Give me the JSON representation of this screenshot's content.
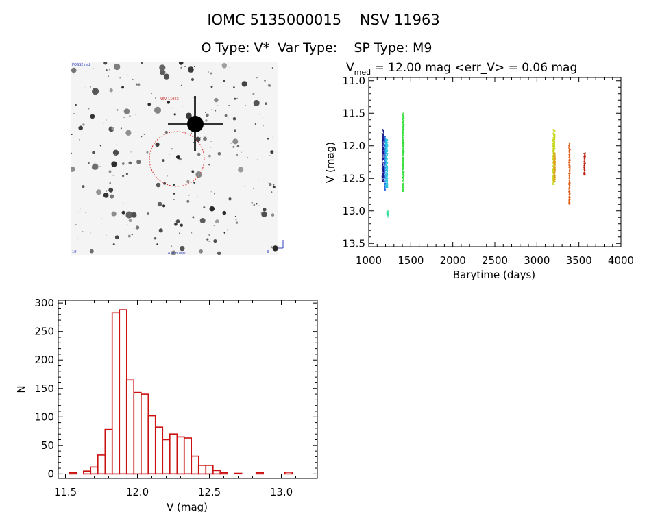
{
  "header": {
    "title": "IOMC 5135000015    NSV 11963",
    "subtitle": "O Type: V*  Var Type:    SP Type: M9"
  },
  "sky_image": {
    "top_left_label": "POSS2 red",
    "red_label": "NSV 11963",
    "bottom_left_label": "10'",
    "bottom_center_label": "4.1E3 MJD",
    "bottom_right_label": "E",
    "top_right_label": "N"
  },
  "chart_data": [
    {
      "type": "scatter",
      "title_prefix": "V",
      "title_sub": "med",
      "title_rest": " = 12.00 mag <err_V> = 0.06 mag",
      "xlabel": "Barytime (days)",
      "ylabel": "V (mag)",
      "xlim": [
        1000,
        4000
      ],
      "ylim": [
        13.55,
        10.95
      ],
      "xticks": [
        "1000",
        "1500",
        "2000",
        "2500",
        "3000",
        "3500",
        "4000"
      ],
      "yticks": [
        "11.0",
        "11.5",
        "12.0",
        "12.5",
        "13.0",
        "13.5"
      ],
      "series": [
        {
          "color": "#1c1c8c",
          "x": [
            1160,
            1180
          ],
          "y_range": [
            11.75,
            12.55
          ]
        },
        {
          "color": "#2a6fe0",
          "x": [
            1185,
            1200
          ],
          "y_range": [
            11.85,
            12.7
          ]
        },
        {
          "color": "#2ec5e0",
          "x": [
            1200,
            1225
          ],
          "y_range": [
            11.9,
            12.65
          ]
        },
        {
          "color": "#35e0a0",
          "x": [
            1215,
            1235
          ],
          "y_range": [
            13.0,
            13.1
          ]
        },
        {
          "color": "#3be040",
          "x": [
            1400,
            1420
          ],
          "y_range": [
            11.5,
            12.7
          ]
        },
        {
          "color": "#c8d820",
          "x": [
            3190,
            3215
          ],
          "y_range": [
            11.75,
            12.6
          ]
        },
        {
          "color": "#e0a020",
          "x": [
            3200,
            3220
          ],
          "y_range": [
            12.1,
            12.55
          ]
        },
        {
          "color": "#e06018",
          "x": [
            3380,
            3395
          ],
          "y_range": [
            11.95,
            12.9
          ]
        },
        {
          "color": "#c02010",
          "x": [
            3560,
            3575
          ],
          "y_range": [
            12.1,
            12.45
          ]
        }
      ]
    },
    {
      "type": "bar",
      "xlabel": "V (mag)",
      "ylabel": "N",
      "xlim": [
        11.45,
        13.25
      ],
      "ylim": [
        -8,
        305
      ],
      "xticks": [
        "11.5",
        "12.0",
        "12.5",
        "13.0"
      ],
      "yticks": [
        "0",
        "50",
        "100",
        "150",
        "200",
        "250",
        "300"
      ],
      "bin_width": 0.05,
      "bins": [
        [
          11.55,
          2
        ],
        [
          11.65,
          5
        ],
        [
          11.7,
          12
        ],
        [
          11.75,
          33
        ],
        [
          11.8,
          78
        ],
        [
          11.85,
          283
        ],
        [
          11.9,
          288
        ],
        [
          11.95,
          165
        ],
        [
          12.0,
          143
        ],
        [
          12.05,
          140
        ],
        [
          12.1,
          102
        ],
        [
          12.15,
          82
        ],
        [
          12.2,
          60
        ],
        [
          12.25,
          70
        ],
        [
          12.3,
          65
        ],
        [
          12.35,
          63
        ],
        [
          12.4,
          31
        ],
        [
          12.45,
          15
        ],
        [
          12.5,
          15
        ],
        [
          12.55,
          6
        ],
        [
          12.6,
          2
        ],
        [
          12.7,
          1
        ],
        [
          12.85,
          2
        ],
        [
          13.05,
          3
        ]
      ]
    }
  ]
}
